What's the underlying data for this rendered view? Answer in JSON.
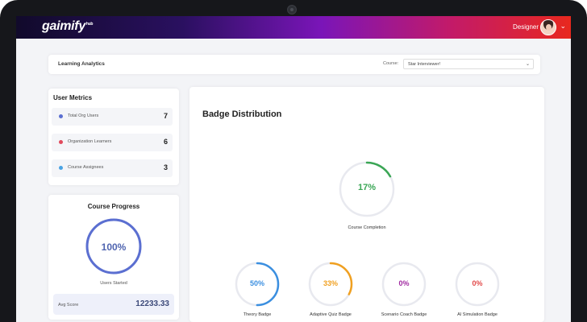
{
  "app": {
    "logo": "gaimify",
    "logo_sup": "hub",
    "role": "Designer"
  },
  "header": {
    "title": "Learning Analytics",
    "course_label": "Course:",
    "course_value": "Star Interviewer!"
  },
  "user_metrics": {
    "title": "User Metrics",
    "items": [
      {
        "label": "Total Org Users",
        "value": "7",
        "color": "#5b6fd1"
      },
      {
        "label": "Organization Learners",
        "value": "6",
        "color": "#e14a5c"
      },
      {
        "label": "Course Assignees",
        "value": "3",
        "color": "#4aa3e3"
      }
    ]
  },
  "course_progress": {
    "title": "Course Progress",
    "percent_label": "100%",
    "percent": 100,
    "subtitle": "Users Started",
    "avg_label": "Avg Score",
    "avg_value": "12233.33",
    "color": "#5b6fd1"
  },
  "badge_distribution": {
    "title": "Badge Distribution",
    "main": {
      "label": "Course Completion",
      "value": "17%",
      "percent": 17,
      "color": "#3aa655"
    },
    "badges": [
      {
        "label": "Theory Badge",
        "value": "50%",
        "percent": 50,
        "color": "#3b8fe0"
      },
      {
        "label": "Adaptive Quiz Badge",
        "value": "33%",
        "percent": 33,
        "color": "#f0a020"
      },
      {
        "label": "Scenario Coach Badge",
        "value": "0%",
        "percent": 0,
        "color": "#a02aa0"
      },
      {
        "label": "AI Simulation Badge",
        "value": "0%",
        "percent": 0,
        "color": "#e24a4a"
      }
    ]
  }
}
